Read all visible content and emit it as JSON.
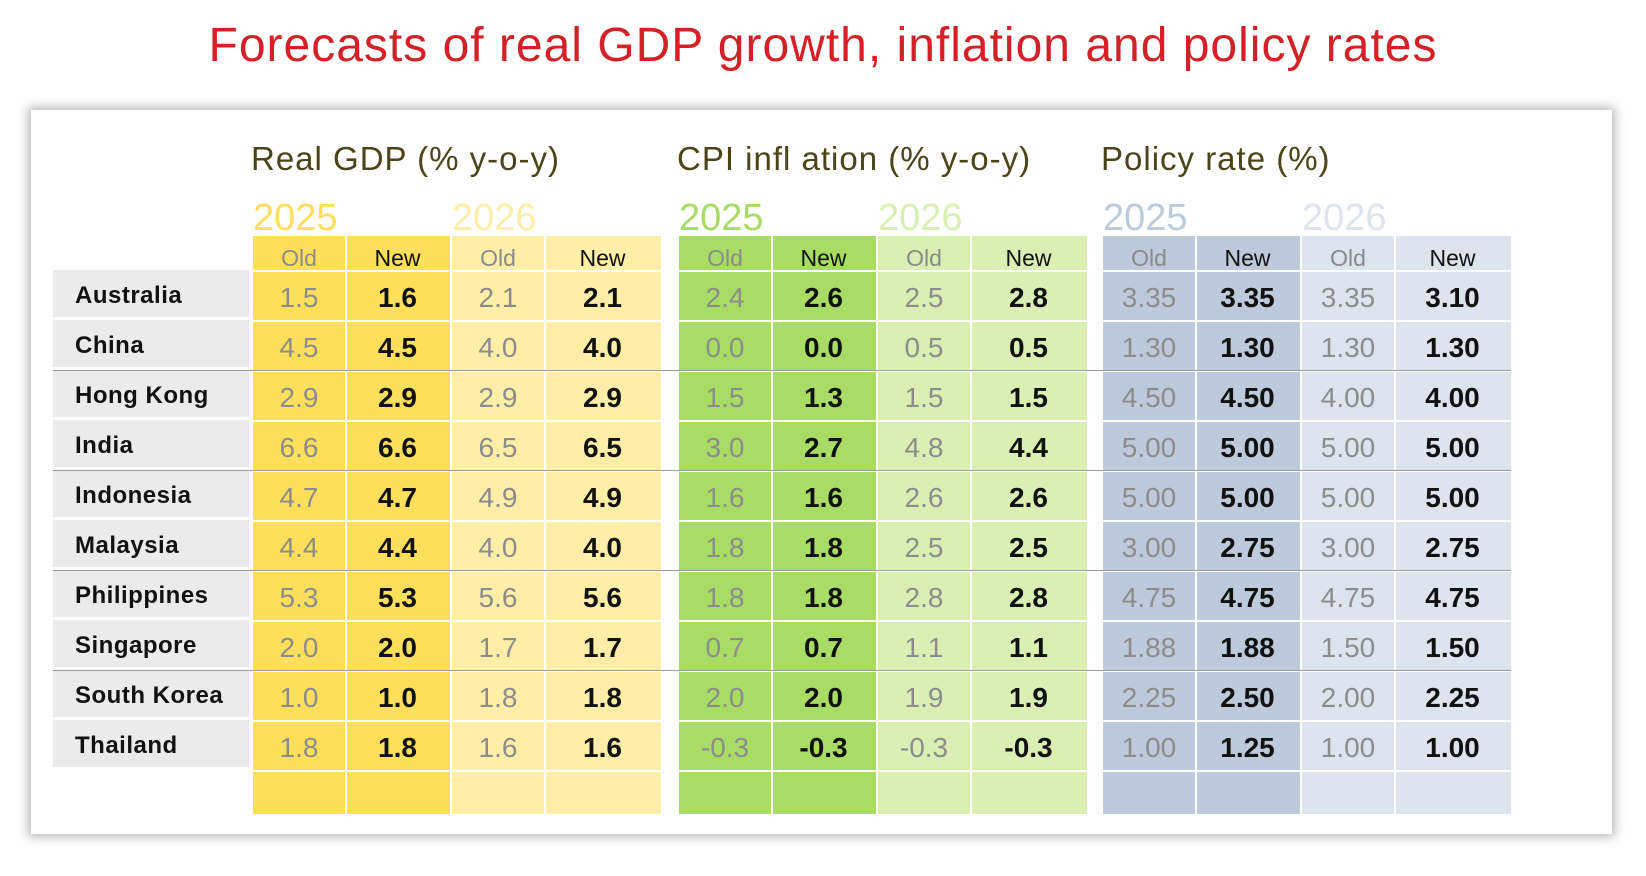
{
  "title": "Forecasts of real GDP growth, inflation and policy rates",
  "colors": {
    "title": "#d42027",
    "gdp_2025": "#fedf5c",
    "gdp_2026": "#feeea8",
    "cpi_2025": "#a8dc64",
    "cpi_2026": "#d9efb4",
    "rate_2025": "#bccadb",
    "rate_2026": "#dde4ee"
  },
  "chart_data": {
    "type": "table",
    "groups": [
      {
        "key": "gdp",
        "title": "Real GDP (% y-o-y)"
      },
      {
        "key": "cpi",
        "title": "CPI infl ation (% y-o-y)"
      },
      {
        "key": "rate",
        "title": "Policy rate (%)"
      }
    ],
    "years": [
      "2025",
      "2026"
    ],
    "subcolumns": [
      "Old",
      "New"
    ],
    "rows": [
      {
        "country": "Australia",
        "gdp_2025": [
          "1.5",
          "1.6"
        ],
        "gdp_2026": [
          "2.1",
          "2.1"
        ],
        "cpi_2025": [
          "2.4",
          "2.6"
        ],
        "cpi_2026": [
          "2.5",
          "2.8"
        ],
        "rate_2025": [
          "3.35",
          "3.35"
        ],
        "rate_2026": [
          "3.35",
          "3.10"
        ]
      },
      {
        "country": "China",
        "gdp_2025": [
          "4.5",
          "4.5"
        ],
        "gdp_2026": [
          "4.0",
          "4.0"
        ],
        "cpi_2025": [
          "0.0",
          "0.0"
        ],
        "cpi_2026": [
          "0.5",
          "0.5"
        ],
        "rate_2025": [
          "1.30",
          "1.30"
        ],
        "rate_2026": [
          "1.30",
          "1.30"
        ]
      },
      {
        "country": "Hong Kong",
        "gdp_2025": [
          "2.9",
          "2.9"
        ],
        "gdp_2026": [
          "2.9",
          "2.9"
        ],
        "cpi_2025": [
          "1.5",
          "1.3"
        ],
        "cpi_2026": [
          "1.5",
          "1.5"
        ],
        "rate_2025": [
          "4.50",
          "4.50"
        ],
        "rate_2026": [
          "4.00",
          "4.00"
        ]
      },
      {
        "country": "India",
        "gdp_2025": [
          "6.6",
          "6.6"
        ],
        "gdp_2026": [
          "6.5",
          "6.5"
        ],
        "cpi_2025": [
          "3.0",
          "2.7"
        ],
        "cpi_2026": [
          "4.8",
          "4.4"
        ],
        "rate_2025": [
          "5.00",
          "5.00"
        ],
        "rate_2026": [
          "5.00",
          "5.00"
        ]
      },
      {
        "country": "Indonesia",
        "gdp_2025": [
          "4.7",
          "4.7"
        ],
        "gdp_2026": [
          "4.9",
          "4.9"
        ],
        "cpi_2025": [
          "1.6",
          "1.6"
        ],
        "cpi_2026": [
          "2.6",
          "2.6"
        ],
        "rate_2025": [
          "5.00",
          "5.00"
        ],
        "rate_2026": [
          "5.00",
          "5.00"
        ]
      },
      {
        "country": "Malaysia",
        "gdp_2025": [
          "4.4",
          "4.4"
        ],
        "gdp_2026": [
          "4.0",
          "4.0"
        ],
        "cpi_2025": [
          "1.8",
          "1.8"
        ],
        "cpi_2026": [
          "2.5",
          "2.5"
        ],
        "rate_2025": [
          "3.00",
          "2.75"
        ],
        "rate_2026": [
          "3.00",
          "2.75"
        ]
      },
      {
        "country": "Philippines",
        "gdp_2025": [
          "5.3",
          "5.3"
        ],
        "gdp_2026": [
          "5.6",
          "5.6"
        ],
        "cpi_2025": [
          "1.8",
          "1.8"
        ],
        "cpi_2026": [
          "2.8",
          "2.8"
        ],
        "rate_2025": [
          "4.75",
          "4.75"
        ],
        "rate_2026": [
          "4.75",
          "4.75"
        ]
      },
      {
        "country": "Singapore",
        "gdp_2025": [
          "2.0",
          "2.0"
        ],
        "gdp_2026": [
          "1.7",
          "1.7"
        ],
        "cpi_2025": [
          "0.7",
          "0.7"
        ],
        "cpi_2026": [
          "1.1",
          "1.1"
        ],
        "rate_2025": [
          "1.88",
          "1.88"
        ],
        "rate_2026": [
          "1.50",
          "1.50"
        ]
      },
      {
        "country": "South Korea",
        "gdp_2025": [
          "1.0",
          "1.0"
        ],
        "gdp_2026": [
          "1.8",
          "1.8"
        ],
        "cpi_2025": [
          "2.0",
          "2.0"
        ],
        "cpi_2026": [
          "1.9",
          "1.9"
        ],
        "rate_2025": [
          "2.25",
          "2.50"
        ],
        "rate_2026": [
          "2.00",
          "2.25"
        ]
      },
      {
        "country": "Thailand",
        "gdp_2025": [
          "1.8",
          "1.8"
        ],
        "gdp_2026": [
          "1.6",
          "1.6"
        ],
        "cpi_2025": [
          "-0.3",
          "-0.3"
        ],
        "cpi_2026": [
          "-0.3",
          "-0.3"
        ],
        "rate_2025": [
          "1.00",
          "1.25"
        ],
        "rate_2026": [
          "1.00",
          "1.00"
        ]
      }
    ]
  }
}
